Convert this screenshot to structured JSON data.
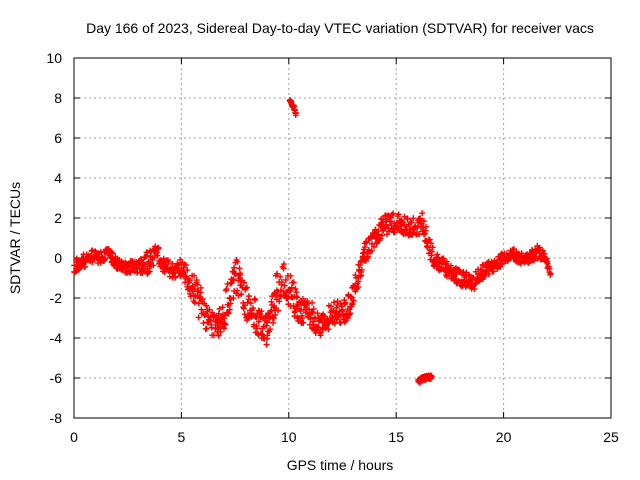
{
  "chart_data": {
    "type": "scatter",
    "title": "Day 166 of 2023, Sidereal Day-to-day VTEC variation (SDTVAR) for receiver vacs",
    "xlabel": "GPS time / hours",
    "ylabel": "SDTVAR / TECUs",
    "xlim": [
      0,
      25
    ],
    "ylim": [
      -8,
      10
    ],
    "xticks": [
      0,
      5,
      10,
      15,
      20,
      25
    ],
    "yticks": [
      -8,
      -6,
      -4,
      -2,
      0,
      2,
      4,
      6,
      8,
      10
    ],
    "grid": true,
    "marker": "+",
    "color": "#ff0000",
    "series": [
      {
        "name": "SDTVAR",
        "trend": {
          "x": [
            0.0,
            0.4,
            0.8,
            1.2,
            1.6,
            2.0,
            2.5,
            3.0,
            3.5,
            3.8,
            4.2,
            4.6,
            5.0,
            5.4,
            5.8,
            6.2,
            6.6,
            7.0,
            7.3,
            7.6,
            7.9,
            8.2,
            8.6,
            9.0,
            9.4,
            9.7,
            10.0,
            10.3,
            10.6,
            10.9,
            11.2,
            11.5,
            11.8,
            12.1,
            12.5,
            12.9,
            13.2,
            13.5,
            13.8,
            14.1,
            14.4,
            14.7,
            15.0,
            15.3,
            15.6,
            15.9,
            16.2,
            16.5,
            16.8,
            17.1,
            17.4,
            17.7,
            18.0,
            18.3,
            18.6,
            18.9,
            19.2,
            19.5,
            19.8,
            20.1,
            20.4,
            20.7,
            21.0,
            21.3,
            21.6,
            21.9,
            22.2
          ],
          "y": [
            -0.4,
            -0.2,
            0.1,
            0.0,
            0.2,
            -0.3,
            -0.5,
            -0.4,
            -0.2,
            0.3,
            -0.4,
            -0.6,
            -0.5,
            -1.2,
            -2.1,
            -3.0,
            -3.5,
            -2.8,
            -1.5,
            -0.8,
            -1.8,
            -2.5,
            -3.2,
            -3.6,
            -2.0,
            -0.8,
            -1.5,
            -2.2,
            -2.8,
            -2.4,
            -3.2,
            -3.4,
            -3.0,
            -2.7,
            -2.8,
            -2.2,
            -1.0,
            0.2,
            0.6,
            1.2,
            1.6,
            1.7,
            1.8,
            1.6,
            1.5,
            1.5,
            1.8,
            0.6,
            -0.1,
            -0.3,
            -0.6,
            -0.8,
            -1.0,
            -1.1,
            -1.2,
            -0.8,
            -0.6,
            -0.4,
            -0.2,
            0.1,
            0.2,
            0.0,
            -0.1,
            0.1,
            0.3,
            0.1,
            -0.6
          ],
          "spread": [
            0.35,
            0.35,
            0.3,
            0.3,
            0.3,
            0.3,
            0.3,
            0.35,
            0.6,
            0.5,
            0.4,
            0.4,
            0.45,
            0.7,
            0.9,
            0.7,
            0.5,
            0.9,
            1.0,
            0.9,
            1.0,
            0.9,
            0.8,
            0.8,
            1.1,
            1.1,
            0.9,
            0.8,
            0.7,
            0.8,
            0.6,
            0.5,
            0.6,
            0.6,
            0.6,
            0.6,
            0.6,
            0.5,
            0.5,
            0.5,
            0.5,
            0.5,
            0.5,
            0.5,
            0.5,
            0.5,
            0.5,
            0.5,
            0.4,
            0.4,
            0.4,
            0.4,
            0.4,
            0.4,
            0.4,
            0.4,
            0.4,
            0.35,
            0.3,
            0.3,
            0.3,
            0.3,
            0.3,
            0.3,
            0.35,
            0.3,
            0.3
          ],
          "sample_step_hours": 0.045
        },
        "clusters": [
          {
            "x": [
              10.05,
              10.2,
              10.35
            ],
            "y": [
              7.9,
              7.6,
              7.2
            ]
          },
          {
            "x": [
              16.05,
              16.2,
              16.35,
              16.5,
              16.65
            ],
            "y": [
              -6.15,
              -6.05,
              -6.0,
              -5.95,
              -5.95
            ]
          }
        ]
      }
    ]
  }
}
